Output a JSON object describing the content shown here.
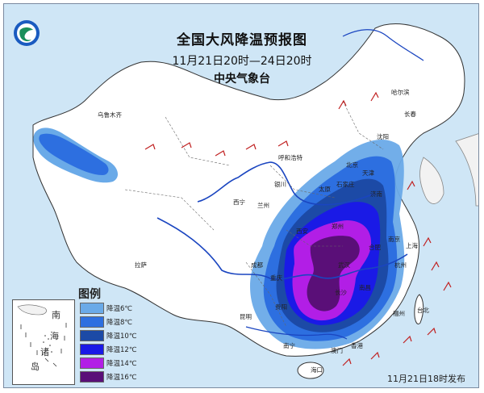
{
  "title": {
    "main": "全国大风降温预报图",
    "period": "11月21日20时—24日20时",
    "agency": "中央气象台"
  },
  "legend": {
    "title": "图例",
    "items": [
      {
        "label": "降温6℃",
        "color": "#6aaae8"
      },
      {
        "label": "降温8℃",
        "color": "#2d6fe0"
      },
      {
        "label": "降温10℃",
        "color": "#1c4aa6"
      },
      {
        "label": "降温12℃",
        "color": "#1a1ae6"
      },
      {
        "label": "降温14℃",
        "color": "#b21ee6"
      },
      {
        "label": "降温16℃",
        "color": "#5a0f78"
      }
    ]
  },
  "inset": {
    "label_1": "南",
    "label_2": "海",
    "label_3": "诸",
    "label_4": "岛"
  },
  "issued": "11月21日18时发布",
  "cities": {
    "harbin": "哈尔滨",
    "changchun": "长春",
    "shenyang": "沈阳",
    "hohhot": "呼和浩特",
    "beijing": "北京",
    "tianjin": "天津",
    "taiyuan": "太原",
    "shijiazhuang": "石家庄",
    "jinan": "济南",
    "yinchuan": "银川",
    "xining": "西宁",
    "lanzhou": "兰州",
    "urumqi": "乌鲁木齐",
    "lhasa": "拉萨",
    "chengdu": "成都",
    "chongqing": "重庆",
    "guiyang": "贵阳",
    "kunming": "昆明",
    "nanning": "南宁",
    "haikou": "海口",
    "hongkong": "香港",
    "macau": "澳门",
    "taipei": "台北",
    "fuzhou": "福州",
    "nanchang": "南昌",
    "changsha": "长沙",
    "hefei": "合肥",
    "hangzhou": "杭州",
    "shanghai": "上海",
    "nanjing": "南京",
    "wuhan": "武汉",
    "zhengzhou": "郑州",
    "xian": "西安"
  }
}
